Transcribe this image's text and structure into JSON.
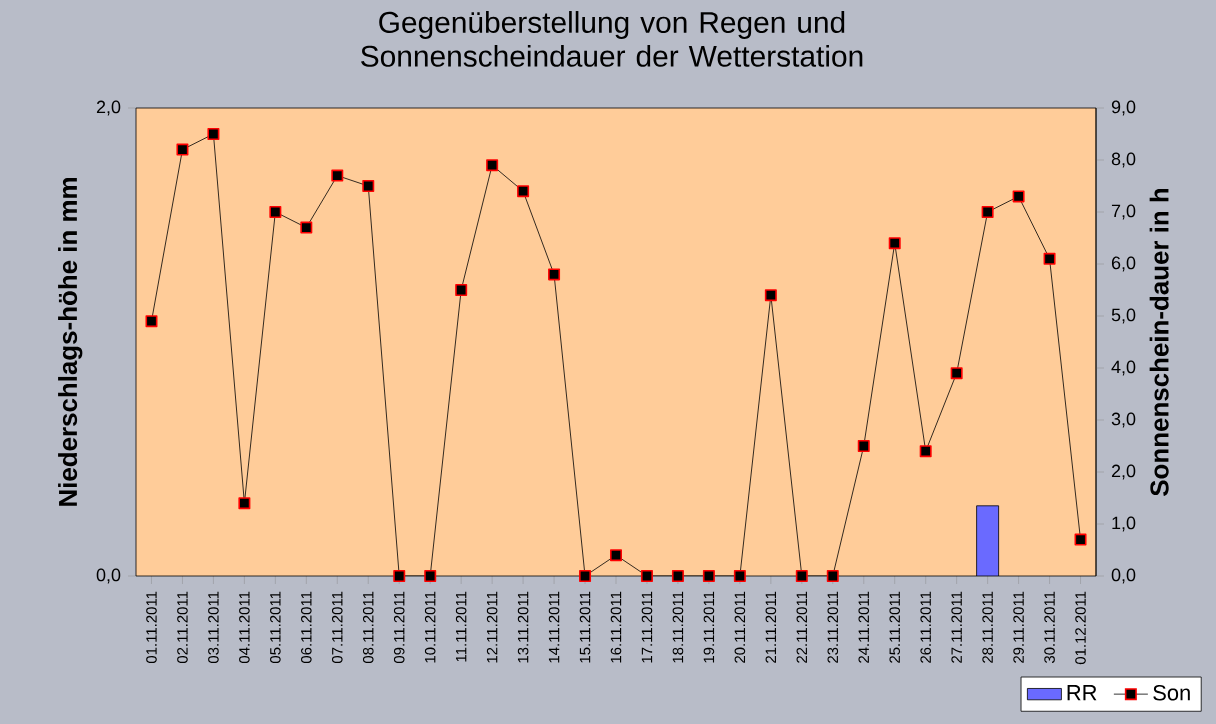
{
  "chart_data": {
    "type": "bar",
    "title": "Gegenüberstellung von Regen und Sonnenscheindauer der Wetterstation",
    "ylabel": "Niederschlags-höhe in mm",
    "y2label": "Sonnenschein-dauer in h",
    "categories": [
      "01.11.2011",
      "02.11.2011",
      "03.11.2011",
      "04.11.2011",
      "05.11.2011",
      "06.11.2011",
      "07.11.2011",
      "08.11.2011",
      "09.11.2011",
      "10.11.2011",
      "11.11.2011",
      "12.11.2011",
      "13.11.2011",
      "14.11.2011",
      "15.11.2011",
      "16.11.2011",
      "17.11.2011",
      "18.11.2011",
      "19.11.2011",
      "20.11.2011",
      "21.11.2011",
      "22.11.2011",
      "23.11.2011",
      "24.11.2011",
      "25.11.2011",
      "26.11.2011",
      "27.11.2011",
      "28.11.2011",
      "29.11.2011",
      "30.11.2011",
      "01.12.2011"
    ],
    "series": [
      {
        "name": "RR",
        "color": "#6a6aff",
        "values": [
          null,
          null,
          null,
          null,
          null,
          null,
          null,
          null,
          null,
          null,
          null,
          null,
          null,
          null,
          null,
          null,
          null,
          null,
          null,
          null,
          null,
          null,
          null,
          null,
          null,
          null,
          null,
          0.3,
          null,
          null,
          null
        ]
      },
      {
        "name": "Son",
        "type": "line",
        "axis": "y2",
        "color": "#000000",
        "values": [
          4.9,
          8.2,
          8.5,
          1.4,
          7.0,
          6.7,
          7.7,
          7.5,
          0,
          0,
          5.5,
          7.9,
          7.4,
          5.8,
          0,
          0.4,
          0,
          0,
          0,
          0,
          5.4,
          0,
          0,
          2.5,
          6.4,
          2.4,
          3.9,
          7.0,
          7.3,
          6.1,
          0.7
        ]
      }
    ],
    "ylim": [
      0,
      2
    ],
    "yticks": [
      {
        "value": 0,
        "label": "0,0"
      },
      {
        "value": 2,
        "label": "2,0"
      }
    ],
    "y2lim": [
      0,
      9
    ],
    "y2ticks": [
      {
        "value": 0,
        "label": "0,0"
      },
      {
        "value": 1,
        "label": "1,0"
      },
      {
        "value": 2,
        "label": "2,0"
      },
      {
        "value": 3,
        "label": "3,0"
      },
      {
        "value": 4,
        "label": "4,0"
      },
      {
        "value": 5,
        "label": "5,0"
      },
      {
        "value": 6,
        "label": "6,0"
      },
      {
        "value": 7,
        "label": "7,0"
      },
      {
        "value": 8,
        "label": "8,0"
      },
      {
        "value": 9,
        "label": "9,0"
      }
    ],
    "marker": "square",
    "legend": "bottom right",
    "grid": false
  }
}
